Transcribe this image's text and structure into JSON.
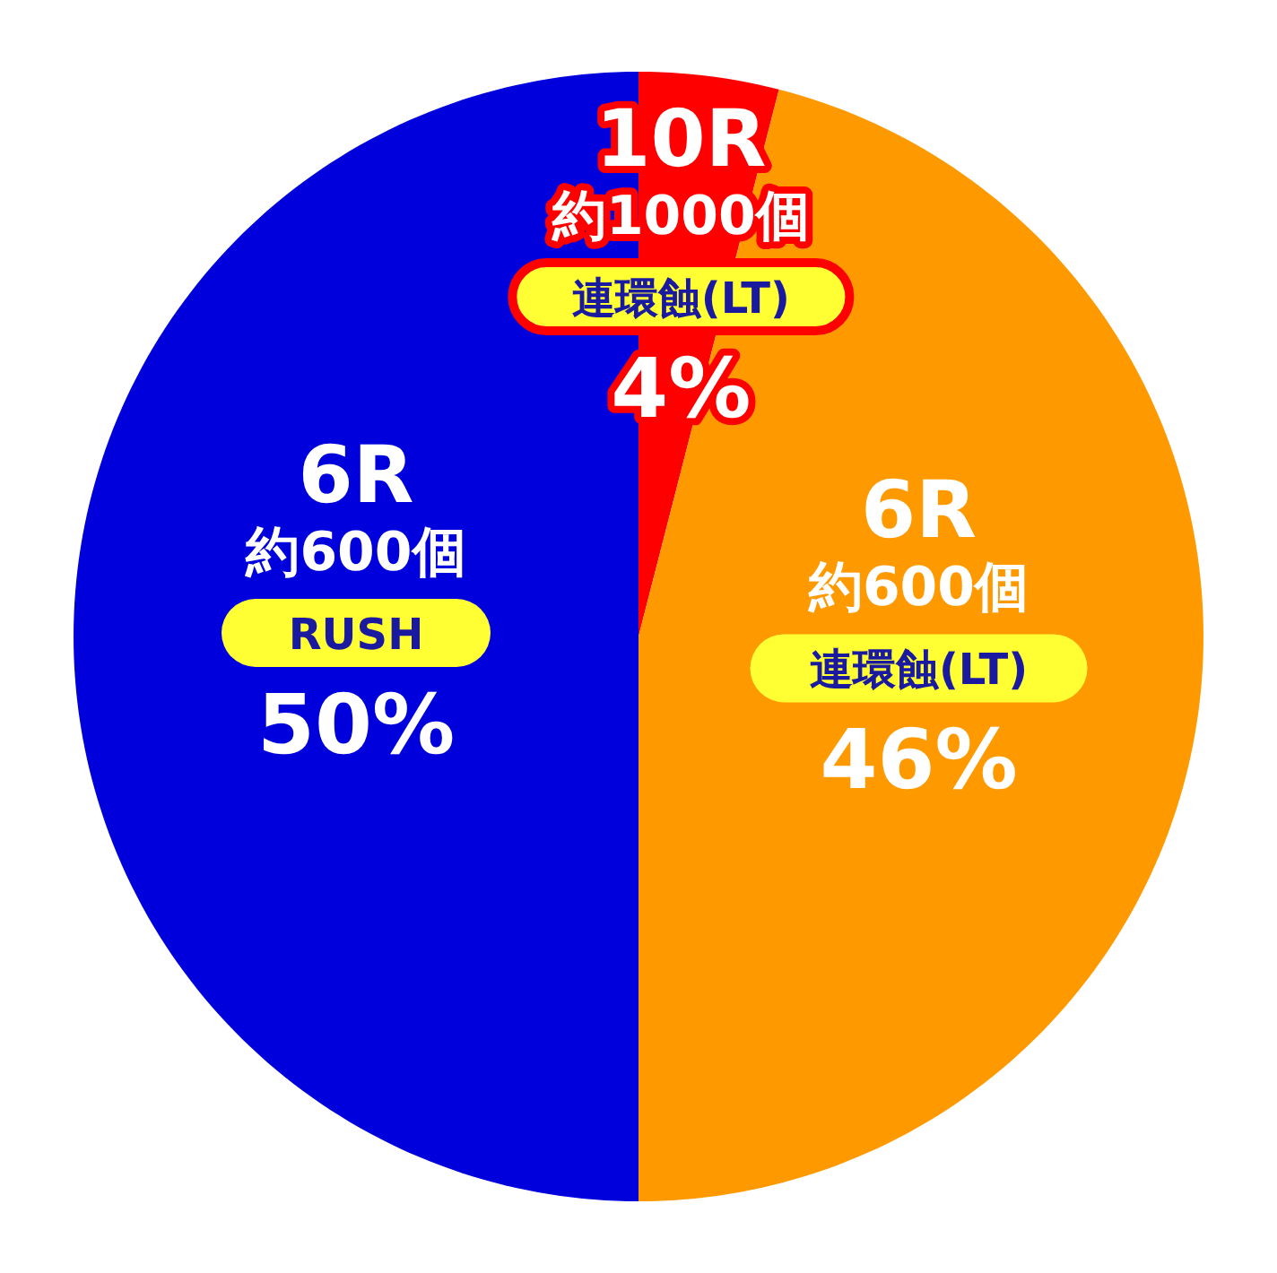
{
  "chart_data": {
    "type": "pie",
    "categories": [
      "10R約1000個",
      "6R約600個",
      "6R約600個"
    ],
    "values": [
      4,
      46,
      50
    ],
    "colors": [
      "#ff0000",
      "#ff9900",
      "#0000dd"
    ],
    "value_labels": [
      "4%",
      "46%",
      "50%"
    ],
    "annotations": [
      "連環蝕(LT)",
      "連環蝕(LT)",
      "RUSH"
    ]
  }
}
